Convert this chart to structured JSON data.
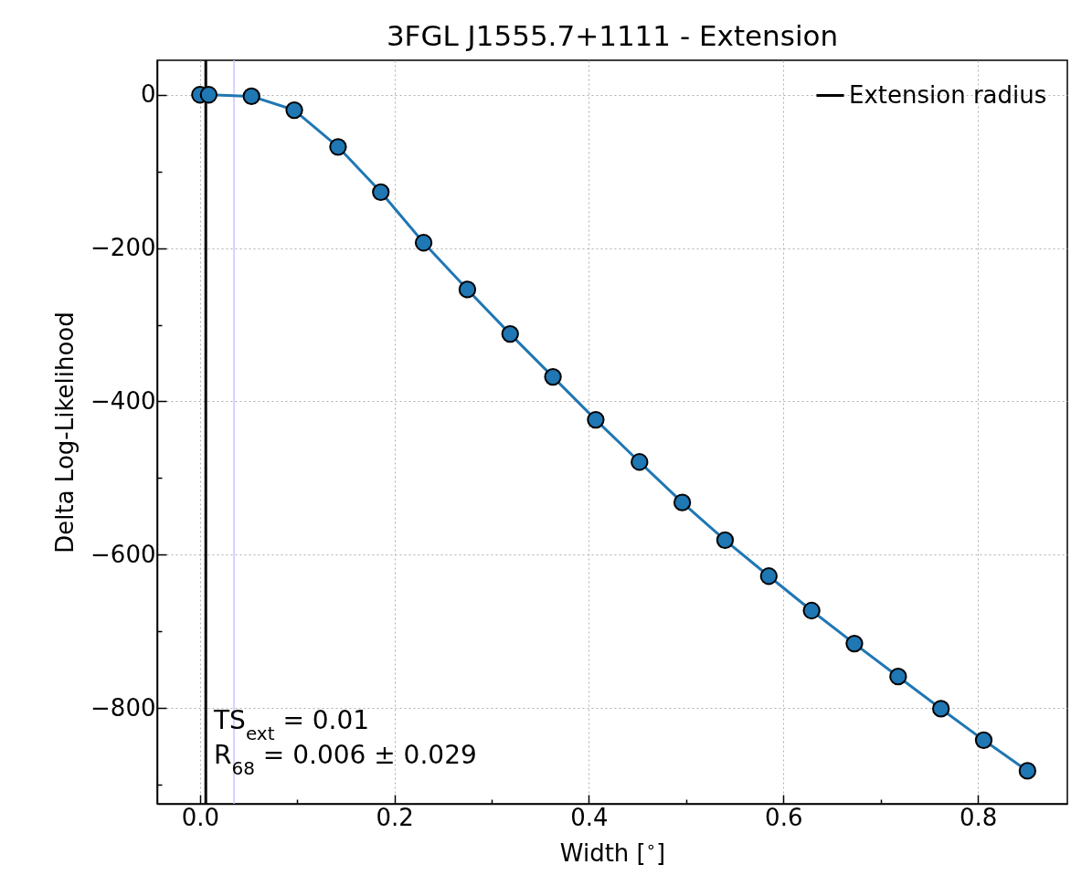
{
  "chart_data": {
    "type": "line",
    "title": "3FGL J1555.7+1111 - Extension",
    "xlabel": "Width [$^{∘}$]",
    "ylabel": "Delta Log-Likelihood",
    "x": [
      0,
      0.009,
      0.053,
      0.097,
      0.142,
      0.186,
      0.23,
      0.275,
      0.319,
      0.363,
      0.407,
      0.452,
      0.496,
      0.54,
      0.585,
      0.629,
      0.673,
      0.718,
      0.762,
      0.806,
      0.851
    ],
    "series": [
      {
        "color": "#1f77b4",
        "values": [
          0,
          0,
          -2,
          -20,
          -68,
          -127,
          -193,
          -254,
          -312,
          -368,
          -424,
          -479,
          -532,
          -581,
          -628,
          -673,
          -716,
          -759,
          -801,
          -842,
          -882
        ]
      }
    ],
    "xlim": [
      -0.044,
      0.892
    ],
    "xticks": [
      {
        "value": 0,
        "label": "0.0"
      },
      {
        "value": 0.1,
        "label": null
      },
      {
        "value": 0.2,
        "label": "0.2"
      },
      {
        "value": 0.3,
        "label": null
      },
      {
        "value": 0.4,
        "label": "0.4"
      },
      {
        "value": 0.5,
        "label": null
      },
      {
        "value": 0.6,
        "label": "0.6"
      },
      {
        "value": 0.7,
        "label": null
      },
      {
        "value": 0.8,
        "label": "0.8"
      }
    ],
    "ylim": [
      -925,
      45
    ],
    "yticks": [
      {
        "value": -900,
        "label": null
      },
      {
        "value": -800,
        "label": "−800"
      },
      {
        "value": -700,
        "label": null
      },
      {
        "value": -600,
        "label": "−600"
      },
      {
        "value": -500,
        "label": null
      },
      {
        "value": -400,
        "label": "−400"
      },
      {
        "value": -300,
        "label": null
      },
      {
        "value": -200,
        "label": "−200"
      },
      {
        "value": -100,
        "label": null
      },
      0
    ],
    "ref_lines": [
      {
        "axis": "x",
        "value": 0.006,
        "label": "Extension radius",
        "color": "#000000"
      },
      {
        "axis": "x",
        "value": 0.035,
        "color": "#c8c8ff"
      }
    ],
    "annotations": [
      "TS$_{ext}$ = 0.01",
      "R$_{68}$ = 0.006 ± 0.029"
    ],
    "legend": "top right",
    "grid": true,
    "marker": "circle",
    "line_style": "solid"
  }
}
